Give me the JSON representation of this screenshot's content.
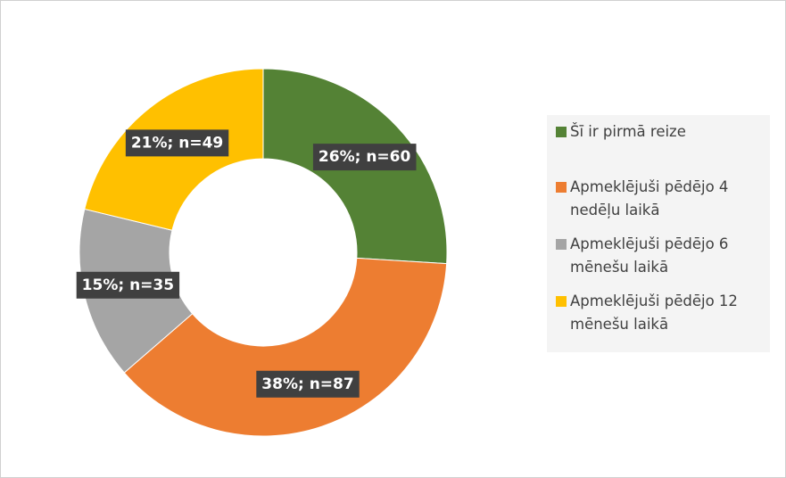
{
  "chart_data": {
    "type": "donut",
    "categories": [
      "Šī ir pirmā reize",
      "Apmeklējuši pēdējo 4 nedēļu laikā",
      "Apmeklējuši pēdējo 6 mēnešu laikā",
      "Apmeklējuši pēdējo 12 mēnešu laikā"
    ],
    "values": [
      60,
      87,
      35,
      49
    ],
    "value_labels": [
      "26%; n=60",
      "38%; n=87",
      "15%; n=35",
      "21%; n=49"
    ],
    "colors": [
      "#548235",
      "#ed7d31",
      "#a5a5a5",
      "#ffc000"
    ],
    "legend": "right"
  }
}
